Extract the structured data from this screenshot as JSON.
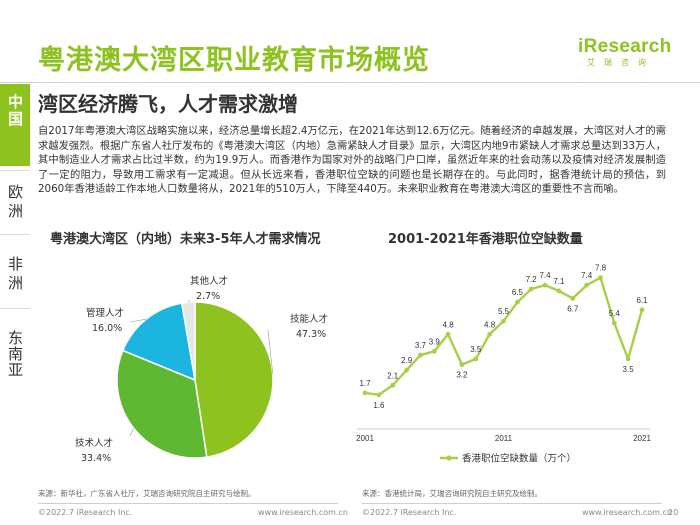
{
  "header": {
    "title": "粤港澳大湾区职业教育市场概览",
    "logo_word": "iResearch",
    "logo_sub": "艾瑞咨询"
  },
  "sidebar": {
    "items": [
      {
        "label": "中国",
        "active": true
      },
      {
        "label": "欧洲",
        "active": false
      },
      {
        "label": "非洲",
        "active": false
      },
      {
        "label": "东南亚",
        "active": false
      }
    ]
  },
  "subtitle": "湾区经济腾飞，人才需求激增",
  "body_text": "自2017年粤港澳大湾区战略实施以来，经济总量增长超2.4万亿元，在2021年达到12.6万亿元。随着经济的卓越发展，大湾区对人才的需求越发强烈。根据广东省人社厅发布的《粤港澳大湾区（内地）急需紧缺人才目录》显示，大湾区内地9市紧缺人才需求总量达到33万人，其中制造业人才需求占比过半数，约为19.9万人。而香港作为国家对外的战略门户口岸，虽然近年来的社会动荡以及疫情对经济发展制造了一定的阻力，导致用工需求有一定减退。但从长远来看，香港职位空缺的问题也是长期存在的。与此同时，据香港统计局的预估，到2060年香港适龄工作本地人口数量将从，2021年的510万人，下降至440万。未来职业教育在粤港澳大湾区的重要性不言而喻。",
  "accent_color": "#8dc21f",
  "chart_data": [
    {
      "type": "pie",
      "title": "粤港澳大湾区（内地）未来3-5年人才需求情况",
      "slices": [
        {
          "name": "技能人才",
          "value": 47.3,
          "label": "47.3%",
          "color": "#8dc21f"
        },
        {
          "name": "技术人才",
          "value": 33.4,
          "label": "33.4%",
          "color": "#5fb832"
        },
        {
          "name": "管理人才",
          "value": 16.0,
          "label": "16.0%",
          "color": "#1cb5e0"
        },
        {
          "name": "其他人才",
          "value": 2.7,
          "label": "2.7%",
          "color": "#e6e6e6"
        }
      ]
    },
    {
      "type": "line",
      "title": "2001-2021年香港职位空缺数量",
      "legend": "香港职位空缺数量（万个）",
      "legend_position": "bottom",
      "color": "#a8cf45",
      "x": [
        2001,
        2002,
        2003,
        2004,
        2005,
        2006,
        2007,
        2008,
        2009,
        2010,
        2011,
        2012,
        2013,
        2014,
        2015,
        2016,
        2017,
        2018,
        2019,
        2020,
        2021
      ],
      "values": [
        1.7,
        1.6,
        2.1,
        2.9,
        3.7,
        3.9,
        4.8,
        3.2,
        3.5,
        4.8,
        5.5,
        6.5,
        7.2,
        7.4,
        7.1,
        6.7,
        7.4,
        7.8,
        5.4,
        3.5,
        6.1
      ],
      "value_labels": [
        "1.7",
        "1.6",
        "2.1",
        "2.9",
        "3.7",
        "3.9",
        "4.8",
        "3.2",
        "3.5",
        "4.8",
        "5.5",
        "6.5",
        "7.2",
        "7.4",
        "7.1",
        "6.7",
        "7.4",
        "7.8",
        "5.4",
        "3.5",
        "6.1"
      ],
      "x_tick_labels": [
        "2001",
        "2011",
        "2021"
      ],
      "ylim": [
        0,
        9
      ],
      "grid": false
    }
  ],
  "sources": {
    "left": "来源：新华社，广东省人社厅，艾瑞咨询研究院自主研究与绘制。",
    "right": "来源：香港统计局，艾瑞咨询研究院自主研究及绘制。"
  },
  "footer": {
    "left_copyright": "©2022.7 iResearch Inc.",
    "left_url": "www.iresearch.com.cn",
    "right_copyright": "©2022.7 iResearch Inc.",
    "right_url": "www.iresearch.com.cn",
    "page_number": "20"
  }
}
